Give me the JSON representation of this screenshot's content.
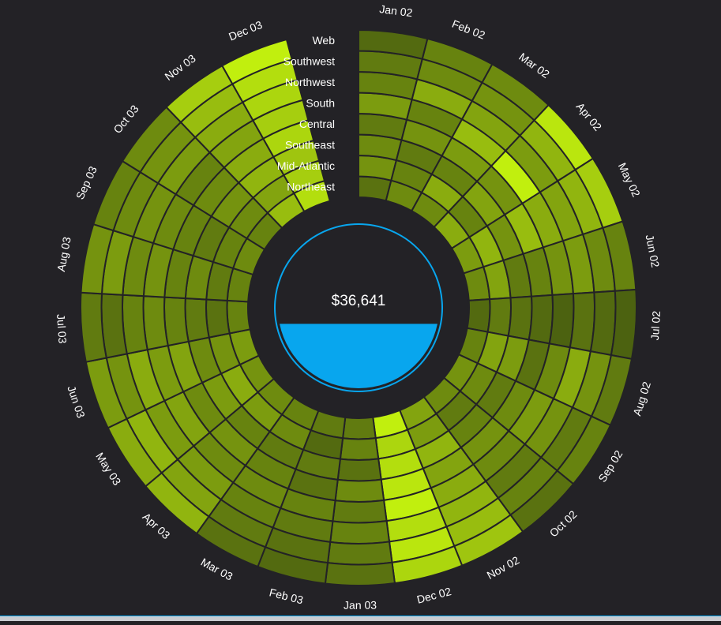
{
  "chart_data": {
    "type": "radial-heatmap",
    "title": "",
    "total_label": "$36,641",
    "gauge_fill_percent": 40,
    "regions": [
      "Web",
      "Southwest",
      "Northwest",
      "South",
      "Central",
      "Southeast",
      "Mid-Atlantic",
      "Northeast"
    ],
    "months": [
      "Jan 02",
      "Feb 02",
      "Mar 02",
      "Apr 02",
      "May 02",
      "Jun 02",
      "Jul 02",
      "Aug 02",
      "Sep 02",
      "Oct 02",
      "Nov 02",
      "Dec 02",
      "Jan 03",
      "Feb 03",
      "Mar 03",
      "Apr 03",
      "May 03",
      "Jun 03",
      "Jul 03",
      "Aug 03",
      "Sep 03",
      "Oct 03",
      "Nov 03",
      "Dec 03"
    ],
    "intensity_scale": [
      0,
      1
    ],
    "values": [
      [
        0.15,
        0.25,
        0.3,
        0.45,
        0.25,
        0.35,
        0.4,
        0.2
      ],
      [
        0.3,
        0.35,
        0.55,
        0.3,
        0.4,
        0.25,
        0.3,
        0.35
      ],
      [
        0.35,
        0.4,
        0.5,
        0.65,
        0.45,
        0.3,
        0.55,
        0.35
      ],
      [
        0.9,
        0.6,
        0.45,
        0.95,
        0.4,
        0.5,
        0.3,
        0.55
      ],
      [
        0.75,
        0.6,
        0.5,
        0.55,
        0.65,
        0.4,
        0.6,
        0.45
      ],
      [
        0.3,
        0.35,
        0.45,
        0.4,
        0.3,
        0.25,
        0.5,
        0.35
      ],
      [
        0.1,
        0.15,
        0.2,
        0.1,
        0.15,
        0.2,
        0.25,
        0.15
      ],
      [
        0.25,
        0.4,
        0.55,
        0.35,
        0.2,
        0.45,
        0.5,
        0.3
      ],
      [
        0.3,
        0.25,
        0.4,
        0.45,
        0.35,
        0.25,
        0.35,
        0.4
      ],
      [
        0.2,
        0.3,
        0.25,
        0.35,
        0.4,
        0.3,
        0.25,
        0.35
      ],
      [
        0.7,
        0.65,
        0.6,
        0.55,
        0.5,
        0.6,
        0.45,
        0.5
      ],
      [
        0.8,
        0.9,
        0.85,
        0.95,
        0.9,
        0.85,
        0.8,
        0.95
      ],
      [
        0.2,
        0.25,
        0.3,
        0.25,
        0.35,
        0.2,
        0.3,
        0.25
      ],
      [
        0.15,
        0.2,
        0.25,
        0.3,
        0.2,
        0.25,
        0.15,
        0.25
      ],
      [
        0.2,
        0.25,
        0.3,
        0.35,
        0.3,
        0.25,
        0.35,
        0.3
      ],
      [
        0.6,
        0.5,
        0.45,
        0.35,
        0.4,
        0.3,
        0.45,
        0.35
      ],
      [
        0.55,
        0.6,
        0.45,
        0.5,
        0.35,
        0.45,
        0.55,
        0.4
      ],
      [
        0.45,
        0.4,
        0.55,
        0.45,
        0.5,
        0.35,
        0.4,
        0.45
      ],
      [
        0.25,
        0.2,
        0.3,
        0.35,
        0.3,
        0.25,
        0.2,
        0.3
      ],
      [
        0.4,
        0.45,
        0.35,
        0.4,
        0.3,
        0.35,
        0.25,
        0.3
      ],
      [
        0.3,
        0.35,
        0.4,
        0.35,
        0.3,
        0.25,
        0.3,
        0.35
      ],
      [
        0.35,
        0.4,
        0.45,
        0.3,
        0.35,
        0.4,
        0.35,
        0.3
      ],
      [
        0.75,
        0.65,
        0.55,
        0.5,
        0.55,
        0.6,
        0.5,
        0.65
      ],
      [
        0.95,
        0.85,
        0.8,
        0.75,
        0.8,
        0.7,
        0.75,
        0.85
      ]
    ],
    "colors": {
      "low": "#3e5110",
      "high": "#c8f70e",
      "cell_border": "#232226",
      "gauge": "#08a6ee",
      "background": "#232226"
    }
  }
}
